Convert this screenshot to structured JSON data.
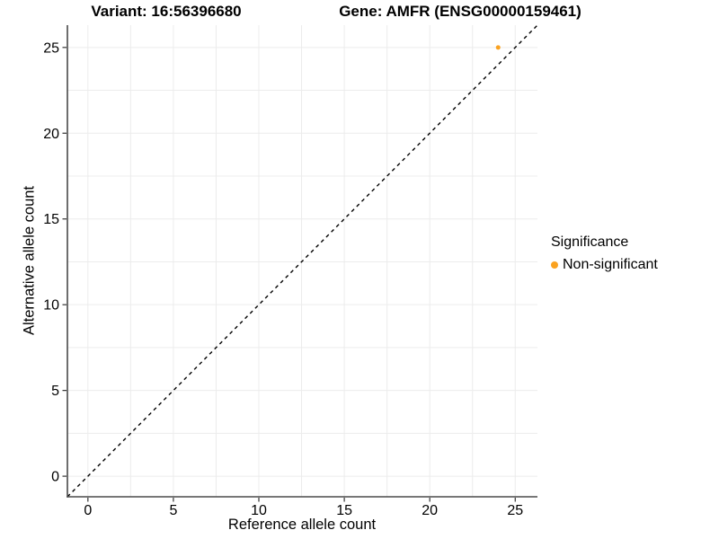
{
  "chart_data": {
    "type": "scatter",
    "title_left": "Variant: 16:56396680",
    "title_right": "Gene: AMFR (ENSG00000159461)",
    "xlabel": "Reference allele count",
    "ylabel": "Alternative allele count",
    "xlim": [
      -1.2,
      26.3
    ],
    "ylim": [
      -1.2,
      26.3
    ],
    "x_ticks": [
      0,
      5,
      10,
      15,
      20,
      25
    ],
    "y_ticks": [
      0,
      5,
      10,
      15,
      20,
      25
    ],
    "minor_grid_step": 2.5,
    "grid": true,
    "grid_color": "#ececec",
    "axis_line_color": "#4a4a4a",
    "series": [
      {
        "name": "Non-significant",
        "color": "#FAA220",
        "points": [
          {
            "x": 24,
            "y": 25
          }
        ]
      }
    ],
    "reference_line": {
      "type": "identity",
      "style": "dashed",
      "color": "#000000"
    },
    "legend": {
      "title": "Significance",
      "position": "right",
      "items": [
        {
          "label": "Non-significant",
          "color": "#FAA220"
        }
      ]
    }
  }
}
